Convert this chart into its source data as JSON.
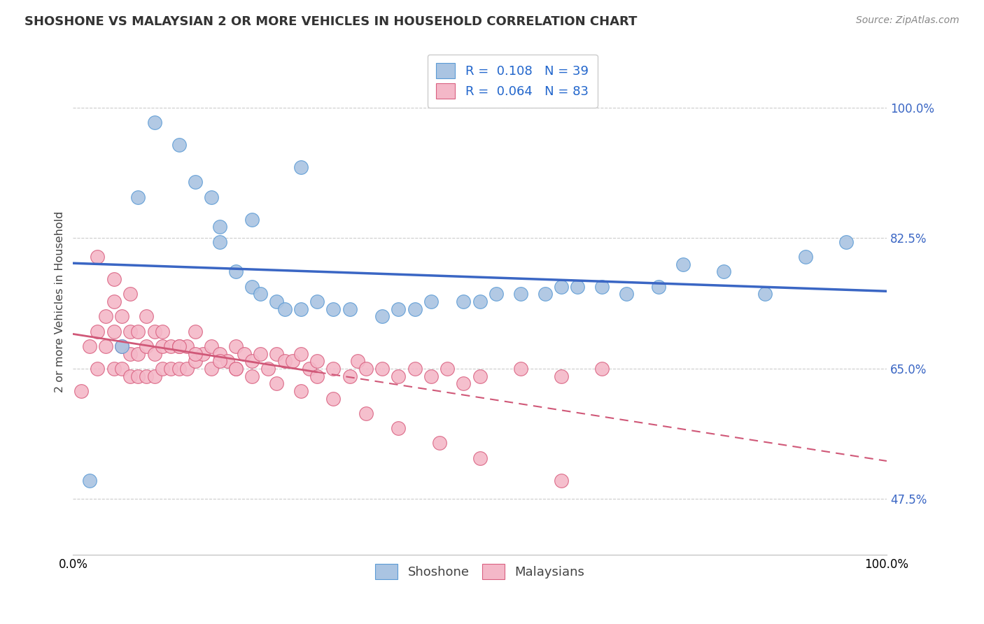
{
  "title": "SHOSHONE VS MALAYSIAN 2 OR MORE VEHICLES IN HOUSEHOLD CORRELATION CHART",
  "source": "Source: ZipAtlas.com",
  "ylabel": "2 or more Vehicles in Household",
  "xlim": [
    0,
    100
  ],
  "ylim": [
    40,
    108
  ],
  "yticks": [
    47.5,
    65.0,
    82.5,
    100.0
  ],
  "ytick_labels": [
    "47.5%",
    "65.0%",
    "82.5%",
    "100.0%"
  ],
  "xtick_left": "0.0%",
  "xtick_right": "100.0%",
  "shoshone_color": "#aac4e2",
  "shoshone_edge": "#5b9bd5",
  "malaysian_color": "#f4b8c8",
  "malaysian_edge": "#d96080",
  "shoshone_R": "0.108",
  "shoshone_N": "39",
  "malaysian_R": "0.064",
  "malaysian_N": "83",
  "legend_color": "#2266cc",
  "trend_shoshone_color": "#3a66c4",
  "trend_malaysian_color": "#d05878",
  "background_color": "#ffffff",
  "grid_color": "#cccccc",
  "shoshone_x": [
    2,
    6,
    10,
    13,
    17,
    18,
    20,
    22,
    23,
    25,
    26,
    28,
    30,
    32,
    34,
    38,
    40,
    44,
    48,
    52,
    55,
    58,
    62,
    65,
    68,
    72,
    80,
    85,
    90,
    95,
    28,
    22,
    18,
    15,
    8,
    42,
    60,
    75,
    50
  ],
  "shoshone_y": [
    50,
    68,
    98,
    95,
    88,
    82,
    78,
    76,
    75,
    74,
    73,
    73,
    74,
    73,
    73,
    72,
    73,
    74,
    74,
    75,
    75,
    75,
    76,
    76,
    75,
    76,
    78,
    75,
    80,
    82,
    92,
    85,
    84,
    90,
    88,
    73,
    76,
    79,
    74
  ],
  "malaysian_x": [
    1,
    2,
    3,
    3,
    4,
    4,
    5,
    5,
    5,
    6,
    6,
    6,
    7,
    7,
    7,
    8,
    8,
    8,
    9,
    9,
    10,
    10,
    10,
    11,
    11,
    12,
    12,
    13,
    13,
    14,
    14,
    15,
    15,
    16,
    17,
    17,
    18,
    19,
    20,
    20,
    21,
    22,
    23,
    24,
    25,
    26,
    27,
    28,
    29,
    30,
    30,
    32,
    34,
    35,
    36,
    38,
    40,
    42,
    44,
    46,
    48,
    50,
    55,
    60,
    65,
    3,
    5,
    7,
    9,
    11,
    13,
    15,
    18,
    20,
    22,
    25,
    28,
    32,
    36,
    40,
    45,
    50,
    60
  ],
  "malaysian_y": [
    62,
    68,
    70,
    65,
    72,
    68,
    74,
    70,
    65,
    72,
    68,
    65,
    70,
    67,
    64,
    70,
    67,
    64,
    68,
    64,
    70,
    67,
    64,
    68,
    65,
    68,
    65,
    68,
    65,
    68,
    65,
    70,
    66,
    67,
    68,
    65,
    67,
    66,
    68,
    65,
    67,
    66,
    67,
    65,
    67,
    66,
    66,
    67,
    65,
    66,
    64,
    65,
    64,
    66,
    65,
    65,
    64,
    65,
    64,
    65,
    63,
    64,
    65,
    64,
    65,
    80,
    77,
    75,
    72,
    70,
    68,
    67,
    66,
    65,
    64,
    63,
    62,
    61,
    59,
    57,
    55,
    53,
    50
  ]
}
